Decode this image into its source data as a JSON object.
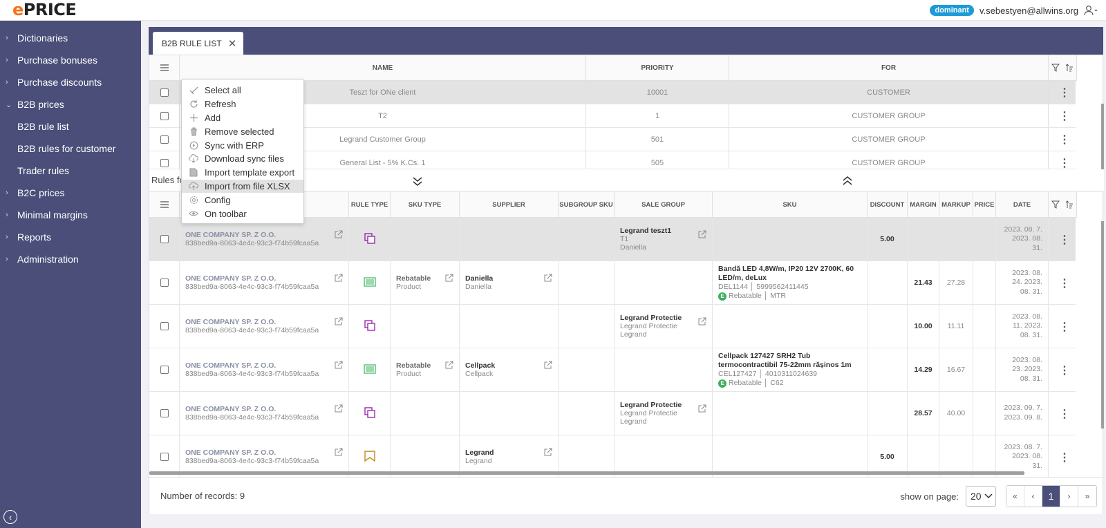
{
  "header": {
    "logo_e": "e",
    "logo_rest": "PRICE",
    "role_badge": "dominant",
    "user_email": "v.sebestyen@allwins.org"
  },
  "sidebar": {
    "items": [
      {
        "label": "Dictionaries"
      },
      {
        "label": "Purchase bonuses"
      },
      {
        "label": "Purchase discounts"
      },
      {
        "label": "B2B prices"
      },
      {
        "label": "B2B rule list"
      },
      {
        "label": "B2B rules for customer"
      },
      {
        "label": "Trader rules"
      },
      {
        "label": "B2C prices"
      },
      {
        "label": "Minimal margins"
      },
      {
        "label": "Reports"
      },
      {
        "label": "Administration"
      }
    ]
  },
  "tab": {
    "label": "B2B RULE LIST"
  },
  "rules_table": {
    "columns": [
      "NAME",
      "PRIORITY",
      "FOR"
    ],
    "rows": [
      {
        "name": "Teszt for ONe client",
        "priority": "10001",
        "for": "CUSTOMER"
      },
      {
        "name": "T2",
        "priority": "1",
        "for": "CUSTOMER GROUP"
      },
      {
        "name": "Legrand Customer Group",
        "priority": "501",
        "for": "CUSTOMER GROUP"
      },
      {
        "name": "General List - 5% K.Cs. 1",
        "priority": "505",
        "for": "CUSTOMER GROUP"
      }
    ]
  },
  "details_label": "Rules fo",
  "details_table": {
    "columns": [
      "RULE TYPE",
      "SKU TYPE",
      "SUPPLIER",
      "SUBGROUP SKU",
      "SALE GROUP",
      "SKU",
      "DISCOUNT",
      "MARGIN",
      "MARKUP",
      "PRICE",
      "DATE"
    ],
    "rows": [
      {
        "customer": "ONE COMPANY SP. Z O.O.",
        "customer_id": "838bed9a-8063-4e4c-93c3-f74b59fcaa5a",
        "sku_type": "",
        "sku_type_sub": "",
        "supplier": "",
        "supplier_sub": "",
        "sale_group": "Legrand teszt1",
        "sale_group_sub": "T1",
        "sale_group_sub2": "Daniella",
        "sku_name": "",
        "sku_code": "",
        "sku_ean": "",
        "sku_stock": "",
        "sku_tags": "",
        "discount": "5.00",
        "margin": "",
        "markup": "",
        "date": "2023. 08. 7. 2023. 08. 31."
      },
      {
        "customer": "ONE COMPANY SP. Z O.O.",
        "customer_id": "838bed9a-8063-4e4c-93c3-f74b59fcaa5a",
        "sku_type": "Rebatable",
        "sku_type_sub": "Product",
        "supplier": "Daniella",
        "supplier_sub": "Daniella",
        "sale_group": "",
        "sale_group_sub": "",
        "sale_group_sub2": "",
        "sku_name": "Bandă LED 4,8W/m, IP20 12V 2700K, 60 LED/m, deLux",
        "sku_code": "DEL1144",
        "sku_ean": "5999562411445",
        "sku_stock": "E",
        "sku_tags": "Rebatable │ MTR",
        "discount": "",
        "margin": "21.43",
        "markup": "27.28",
        "date": "2023. 08. 24. 2023. 08. 31."
      },
      {
        "customer": "ONE COMPANY SP. Z O.O.",
        "customer_id": "838bed9a-8063-4e4c-93c3-f74b59fcaa5a",
        "sku_type": "",
        "sku_type_sub": "",
        "supplier": "",
        "supplier_sub": "",
        "sale_group": "Legrand Protectie",
        "sale_group_sub": "Legrand Protectie",
        "sale_group_sub2": "Legrand",
        "sku_name": "",
        "sku_code": "",
        "sku_ean": "",
        "sku_stock": "",
        "sku_tags": "",
        "discount": "",
        "margin": "10.00",
        "markup": "11.11",
        "date": "2023. 08. 11. 2023. 08. 31."
      },
      {
        "customer": "ONE COMPANY SP. Z O.O.",
        "customer_id": "838bed9a-8063-4e4c-93c3-f74b59fcaa5a",
        "sku_type": "Rebatable",
        "sku_type_sub": "Product",
        "supplier": "Cellpack",
        "supplier_sub": "Cellpack",
        "sale_group": "",
        "sale_group_sub": "",
        "sale_group_sub2": "",
        "sku_name": "Cellpack 127427 SRH2 Tub termocontractibil 75-22mm rășinos 1m",
        "sku_code": "CEL127427",
        "sku_ean": "4010311024639",
        "sku_stock": "E",
        "sku_tags": "Rebatable │ C62",
        "discount": "",
        "margin": "14.29",
        "markup": "16.67",
        "date": "2023. 08. 23. 2023. 08. 31."
      },
      {
        "customer": "ONE COMPANY SP. Z O.O.",
        "customer_id": "838bed9a-8063-4e4c-93c3-f74b59fcaa5a",
        "sku_type": "",
        "sku_type_sub": "",
        "supplier": "",
        "supplier_sub": "",
        "sale_group": "Legrand Protectie",
        "sale_group_sub": "Legrand Protectie",
        "sale_group_sub2": "Legrand",
        "sku_name": "",
        "sku_code": "",
        "sku_ean": "",
        "sku_stock": "",
        "sku_tags": "",
        "discount": "",
        "margin": "28.57",
        "markup": "40.00",
        "date": "2023. 09. 7. 2023. 09. 8."
      },
      {
        "customer": "ONE COMPANY SP. Z O.O.",
        "customer_id": "838bed9a-8063-4e4c-93c3-f74b59fcaa5a",
        "sku_type": "",
        "sku_type_sub": "",
        "supplier": "Legrand",
        "supplier_sub": "Legrand",
        "sale_group": "",
        "sale_group_sub": "",
        "sale_group_sub2": "",
        "sku_name": "",
        "sku_code": "",
        "sku_ean": "",
        "sku_stock": "",
        "sku_tags": "",
        "discount": "5.00",
        "margin": "",
        "markup": "",
        "date": "2023. 08. 7. 2023. 08. 31."
      }
    ]
  },
  "footer": {
    "records": "Number of records: 9",
    "show_on_page": "show on page:",
    "page_size": "20",
    "current_page": "1"
  },
  "context_menu": {
    "items": [
      {
        "label": "Select all",
        "icon": "check-icon"
      },
      {
        "label": "Refresh",
        "icon": "refresh-icon"
      },
      {
        "label": "Add",
        "icon": "plus-icon"
      },
      {
        "label": "Remove selected",
        "icon": "trash-icon"
      },
      {
        "label": "Sync with ERP",
        "icon": "sync-icon"
      },
      {
        "label": "Download sync files",
        "icon": "cloud-download-icon"
      },
      {
        "label": "Import template export",
        "icon": "file-icon"
      },
      {
        "label": "Import from file XLSX",
        "icon": "cloud-upload-icon"
      },
      {
        "label": "Config",
        "icon": "gear-icon"
      },
      {
        "label": "On toolbar",
        "icon": "eye-icon"
      }
    ]
  },
  "colors": {
    "sidebar": "#4a4e79",
    "accent": "#f5731f",
    "badge": "#1d9bd8",
    "rule_type_purple": "#9b27b0",
    "rule_type_green": "#3bb15d",
    "rule_type_gold": "#c08a16"
  }
}
